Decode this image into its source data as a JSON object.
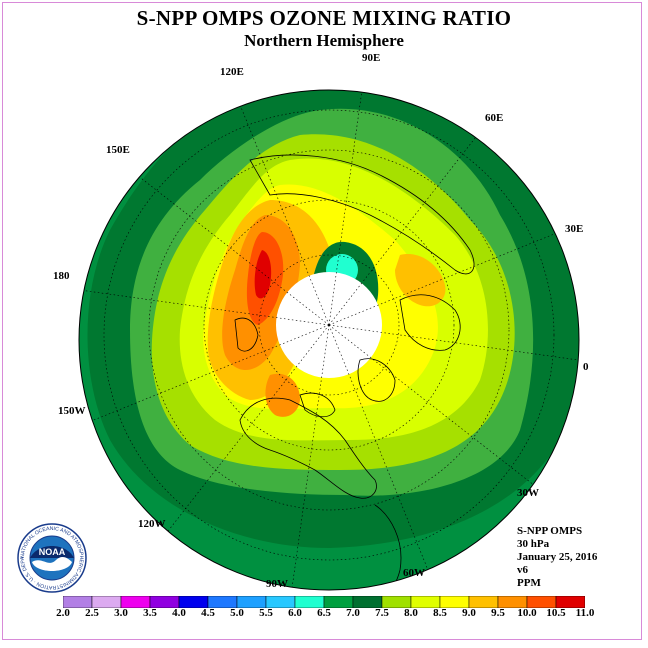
{
  "title": "S-NPP OMPS OZONE MIXING RATIO",
  "subtitle": "Northern Hemisphere",
  "longitude_labels": [
    "90E",
    "60E",
    "30E",
    "0",
    "30W",
    "60W",
    "90W",
    "120W",
    "150W",
    "180",
    "150E",
    "120E"
  ],
  "info": {
    "instrument": "S-NPP OMPS",
    "level": "30 hPa",
    "date": "January 25, 2016",
    "version": "v6",
    "units": "PPM"
  },
  "logo": {
    "name": "NOAA",
    "ring_text": "NATIONAL OCEANIC AND ATMOSPHERIC ADMINISTRATION · U.S. DEPARTMENT OF COMMERCE"
  },
  "colorbar": {
    "labels": [
      "2.0",
      "2.5",
      "3.0",
      "3.5",
      "4.0",
      "4.5",
      "5.0",
      "5.5",
      "6.0",
      "6.5",
      "7.0",
      "7.5",
      "8.0",
      "8.5",
      "9.0",
      "9.5",
      "10.0",
      "10.5",
      "11.0"
    ],
    "colors": [
      "#b27fe5",
      "#dcaaf0",
      "#ee00ee",
      "#9000e0",
      "#0000ee",
      "#1e78ff",
      "#1ea0ff",
      "#28c8ff",
      "#20ffd0",
      "#00a040",
      "#007030",
      "#a0e000",
      "#e0ff00",
      "#ffff00",
      "#ffc000",
      "#ff9000",
      "#ff5000",
      "#e00000",
      "#804020"
    ]
  },
  "map_colors": {
    "outer": "#009040",
    "dark": "#007830",
    "light_green": "#40b040",
    "yellow_green": "#a6e000",
    "lime": "#d8ff00",
    "yellow": "#ffff00",
    "gold": "#ffc000",
    "orange": "#ff9000",
    "red_orange": "#ff5000",
    "red": "#e00000",
    "teal": "#20ffd0",
    "no_data": "#ffffff"
  }
}
